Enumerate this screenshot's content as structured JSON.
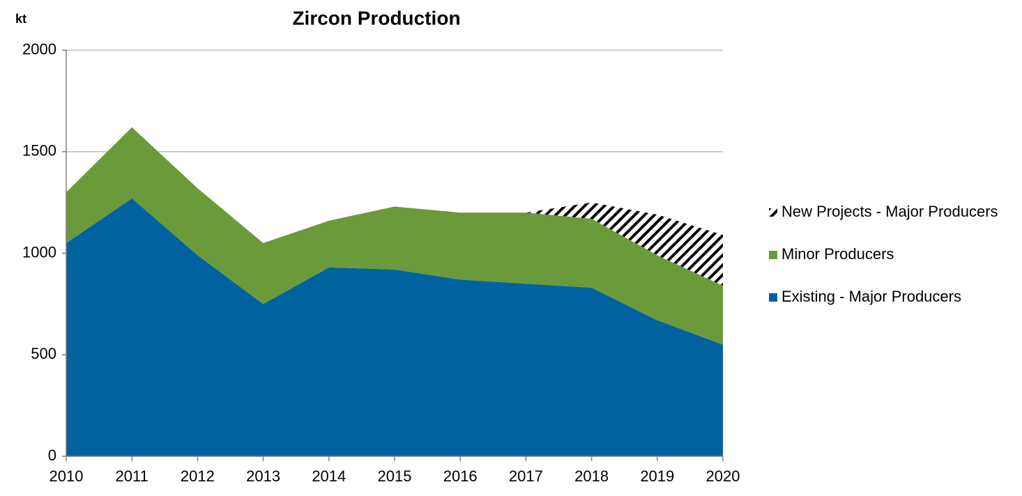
{
  "chart_data": {
    "type": "stacked_area",
    "title": "Zircon Production",
    "y_label": "kt",
    "categories": [
      "2010",
      "2011",
      "2012",
      "2013",
      "2014",
      "2015",
      "2016",
      "2017",
      "2018",
      "2019",
      "2020"
    ],
    "series": [
      {
        "name": "Existing - Major Producers",
        "color": "#0063a0",
        "values": [
          1050,
          1270,
          990,
          750,
          930,
          920,
          870,
          850,
          830,
          670,
          550
        ]
      },
      {
        "name": "Minor Producers",
        "color": "#6b9a3a",
        "values": [
          250,
          350,
          330,
          300,
          230,
          310,
          330,
          350,
          340,
          320,
          290
        ]
      },
      {
        "name": "New Projects - Major Producers",
        "color": "#1f6fa8",
        "hatch": true,
        "values": [
          null,
          null,
          null,
          null,
          null,
          null,
          null,
          0,
          80,
          200,
          250
        ]
      }
    ],
    "ylim": [
      0,
      2000
    ],
    "yticks": [
      0,
      500,
      1000,
      1500,
      2000
    ],
    "grid": true,
    "legend": "right"
  }
}
